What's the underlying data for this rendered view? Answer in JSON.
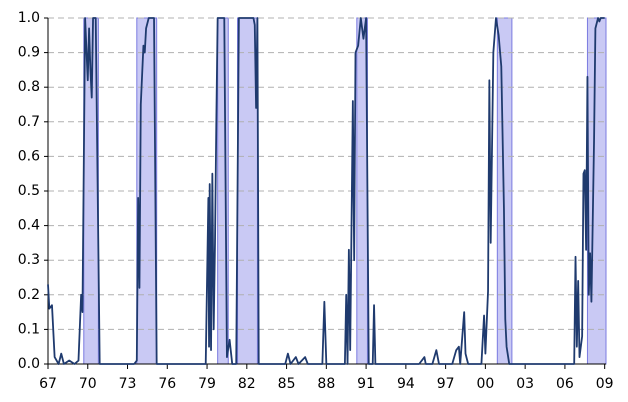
{
  "chart_data": {
    "type": "line",
    "x": [
      1967.0,
      1967.1,
      1967.3,
      1967.5,
      1967.8,
      1968.0,
      1968.2,
      1968.6,
      1969.0,
      1969.3,
      1969.5,
      1969.6,
      1969.8,
      1970.0,
      1970.1,
      1970.2,
      1970.3,
      1970.4,
      1970.6,
      1970.9,
      1971.5,
      1972.5,
      1973.5,
      1973.7,
      1973.8,
      1973.9,
      1974.0,
      1974.2,
      1974.3,
      1974.4,
      1974.6,
      1975.0,
      1975.2,
      1976.0,
      1977.0,
      1978.0,
      1978.9,
      1979.1,
      1979.15,
      1979.2,
      1979.3,
      1979.4,
      1979.5,
      1979.6,
      1979.7,
      1979.8,
      1980.3,
      1980.5,
      1980.7,
      1980.9,
      1981.2,
      1981.4,
      1982.5,
      1982.6,
      1982.7,
      1982.8,
      1982.9,
      1984.0,
      1984.9,
      1985.1,
      1985.3,
      1985.7,
      1985.9,
      1986.4,
      1986.6,
      1987.0,
      1987.7,
      1987.85,
      1988.0,
      1989.0,
      1989.4,
      1989.5,
      1989.6,
      1989.7,
      1989.8,
      1990.0,
      1990.1,
      1990.2,
      1990.4,
      1990.6,
      1990.8,
      1991.0,
      1991.2,
      1991.5,
      1991.6,
      1991.7,
      1993.0,
      1994.0,
      1995.0,
      1995.4,
      1995.5,
      1996.0,
      1996.3,
      1996.5,
      1997.0,
      1997.5,
      1997.8,
      1998.0,
      1998.1,
      1998.4,
      1998.5,
      1998.7,
      1999.0,
      1999.7,
      1999.9,
      2000.0,
      2000.2,
      2000.3,
      2000.4,
      2000.6,
      2000.8,
      2001.0,
      2001.2,
      2001.4,
      2001.5,
      2001.6,
      2001.8,
      2003.0,
      2004.0,
      2005.0,
      2006.0,
      2006.7,
      2006.8,
      2006.9,
      2007.0,
      2007.1,
      2007.3,
      2007.4,
      2007.5,
      2007.6,
      2007.7,
      2007.8,
      2007.9,
      2008.0,
      2008.2,
      2008.3,
      2008.5,
      2008.6,
      2008.7,
      2009.0
    ],
    "values": [
      0.23,
      0.16,
      0.17,
      0.02,
      0.0,
      0.03,
      0.0,
      0.01,
      0.0,
      0.01,
      0.2,
      0.15,
      1.0,
      0.82,
      0.97,
      0.85,
      0.77,
      1.0,
      1.0,
      0.0,
      0.0,
      0.0,
      0.0,
      0.01,
      0.48,
      0.22,
      0.75,
      0.92,
      0.9,
      0.97,
      1.0,
      1.0,
      0.0,
      0.0,
      0.0,
      0.0,
      0.0,
      0.48,
      0.05,
      0.52,
      0.04,
      0.55,
      0.1,
      0.35,
      0.7,
      1.0,
      1.0,
      0.02,
      0.07,
      0.0,
      0.0,
      1.0,
      1.0,
      0.98,
      0.74,
      1.0,
      0.0,
      0.0,
      0.0,
      0.03,
      0.0,
      0.02,
      0.0,
      0.02,
      0.0,
      0.0,
      0.0,
      0.18,
      0.0,
      0.0,
      0.0,
      0.2,
      0.0,
      0.33,
      0.04,
      0.76,
      0.3,
      0.9,
      0.92,
      1.0,
      0.94,
      1.0,
      0.0,
      0.0,
      0.17,
      0.0,
      0.0,
      0.0,
      0.0,
      0.02,
      0.0,
      0.0,
      0.04,
      0.0,
      0.0,
      0.0,
      0.04,
      0.05,
      0.0,
      0.15,
      0.03,
      0.0,
      0.0,
      0.0,
      0.14,
      0.03,
      0.21,
      0.82,
      0.35,
      0.9,
      1.0,
      0.95,
      0.86,
      0.45,
      0.13,
      0.05,
      0.0,
      0.0,
      0.0,
      0.0,
      0.0,
      0.0,
      0.31,
      0.05,
      0.24,
      0.02,
      0.08,
      0.55,
      0.56,
      0.33,
      0.83,
      0.2,
      0.32,
      0.18,
      0.65,
      0.97,
      1.0,
      0.99,
      1.0,
      1.0
    ],
    "color": "#1f3a6e",
    "shaded_regions": [
      {
        "start": 1969.7,
        "end": 1970.8
      },
      {
        "start": 1973.7,
        "end": 1975.2
      },
      {
        "start": 1979.8,
        "end": 1980.6
      },
      {
        "start": 1981.3,
        "end": 1982.8
      },
      {
        "start": 1990.3,
        "end": 1991.1
      },
      {
        "start": 2000.9,
        "end": 2002.0
      },
      {
        "start": 2007.7,
        "end": 2009.1
      }
    ],
    "shade_color": "#c9c9f4",
    "xlim": [
      1967,
      2009.1
    ],
    "xticks": [
      {
        "value": 1967,
        "label": "67"
      },
      {
        "value": 1970,
        "label": "70"
      },
      {
        "value": 1973,
        "label": "73"
      },
      {
        "value": 1976,
        "label": "76"
      },
      {
        "value": 1979,
        "label": "79"
      },
      {
        "value": 1982,
        "label": "82"
      },
      {
        "value": 1985,
        "label": "85"
      },
      {
        "value": 1988,
        "label": "88"
      },
      {
        "value": 1991,
        "label": "91"
      },
      {
        "value": 1994,
        "label": "94"
      },
      {
        "value": 1997,
        "label": "97"
      },
      {
        "value": 2000,
        "label": "00"
      },
      {
        "value": 2003,
        "label": "03"
      },
      {
        "value": 2006,
        "label": "06"
      },
      {
        "value": 2009,
        "label": "09"
      }
    ],
    "ylim": [
      0,
      1
    ],
    "yticks": [
      {
        "value": 0,
        "label": "0.0"
      },
      0.1,
      0.2,
      0.3,
      0.4,
      0.5,
      0.6,
      0.7,
      0.8,
      0.9,
      {
        "value": 1,
        "label": "1.0"
      }
    ],
    "grid": true
  }
}
